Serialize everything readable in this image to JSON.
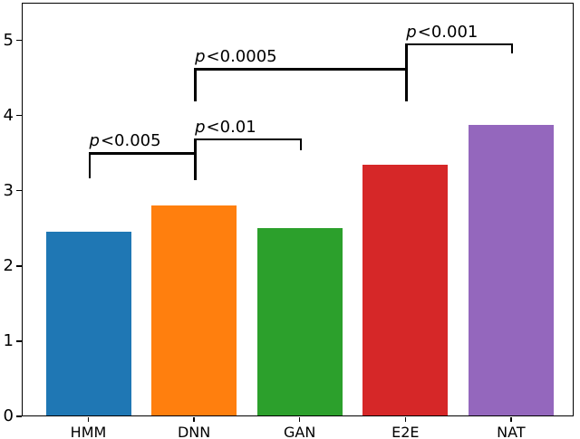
{
  "figure": {
    "background_color": "#ffffff",
    "axis_color": "#000000",
    "text_color": "#000000"
  },
  "chart_data": {
    "type": "bar",
    "title": "",
    "xlabel": "",
    "ylabel": "",
    "categories": [
      "HMM",
      "DNN",
      "GAN",
      "E2E",
      "NAT"
    ],
    "values": [
      2.46,
      2.81,
      2.5,
      3.34,
      3.87
    ],
    "bar_colors": [
      "#1f77b4",
      "#ff7f0e",
      "#2ca02c",
      "#d62728",
      "#9467bd"
    ],
    "ytick_labels": [
      "0",
      "1",
      "2",
      "3",
      "4",
      "5"
    ],
    "ytick_values": [
      0,
      1,
      2,
      3,
      4,
      5
    ],
    "ylim": [
      0,
      5.5
    ],
    "grid": false,
    "legend": "none",
    "frame": "full-box",
    "bracket_color": "#000000",
    "significance_brackets": [
      {
        "pair": [
          "HMM",
          "DNN"
        ],
        "label": "p<0.005",
        "line_y": 3.51,
        "left_drop": 0.35,
        "right_drop": 0.35
      },
      {
        "pair": [
          "DNN",
          "GAN"
        ],
        "label": "p<0.01",
        "line_y": 3.7,
        "left_drop": 0.56,
        "right_drop": 0.16
      },
      {
        "pair": [
          "DNN",
          "E2E"
        ],
        "label": "p<0.0005",
        "line_y": 4.63,
        "left_drop": 0.44,
        "right_drop": 0.44
      },
      {
        "pair": [
          "E2E",
          "NAT"
        ],
        "label": "p<0.001",
        "line_y": 4.96,
        "left_drop": 0.36,
        "right_drop": 0.13
      }
    ]
  }
}
